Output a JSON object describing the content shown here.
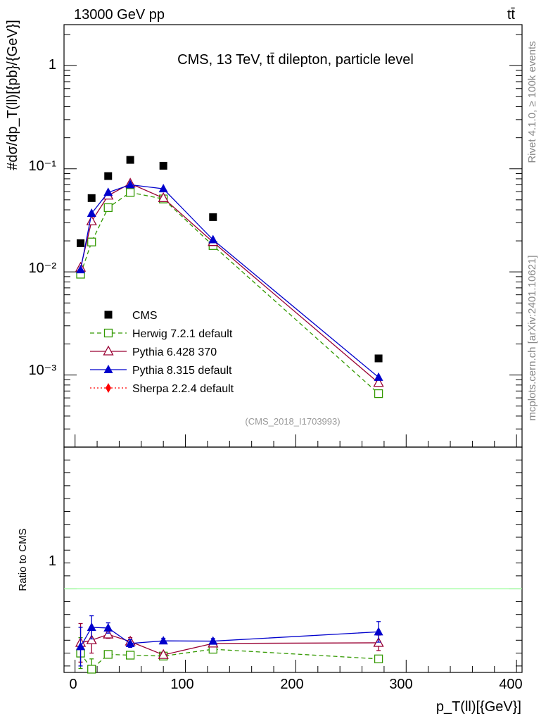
{
  "header": {
    "beam_label": "13000 GeV pp",
    "process_label": "tt̄",
    "plot_title": "CMS, 13 TeV, tt̄ dilepton, particle level",
    "analysis_id": "(CMS_2018_I1703993)"
  },
  "side_labels": {
    "rivet": "Rivet 4.1.0, ≥ 100k events",
    "mcplots": "mcplots.cern.ch [arXiv:2401.10621]"
  },
  "axes": {
    "ylabel_main": "#dσ/dp_T(ll)[{pb}/{GeV}]",
    "ylabel_ratio": "Ratio to CMS",
    "xlabel": "p_T(ll)[{GeV}]",
    "x_ticks": [
      "0",
      "100",
      "200",
      "300",
      "400"
    ],
    "y_ticks_main": [
      "10⁻³",
      "10⁻²",
      "10⁻¹",
      "1"
    ],
    "y_ticks_ratio": [
      "1"
    ]
  },
  "chart_data": {
    "type": "scatter",
    "title": "CMS, 13 TeV, tt̄ dilepton, particle level",
    "xlabel": "p_T(ll) [GeV]",
    "ylabel": "dσ/dp_T(ll) [pb/GeV]",
    "xlim": [
      -10,
      405
    ],
    "ylim": [
      0.0002,
      2.5
    ],
    "yscale": "log",
    "ratio_ylim": [
      0.35,
      2.1
    ],
    "x": [
      5,
      15,
      30,
      50,
      80,
      125,
      275
    ],
    "series": [
      {
        "name": "CMS",
        "color": "#000000",
        "marker": "square-filled",
        "values": [
          0.019,
          0.052,
          0.085,
          0.122,
          0.107,
          0.034,
          0.00145
        ]
      },
      {
        "name": "Herwig 7.2.1 default",
        "color": "#339900",
        "marker": "square-open",
        "dashed": true,
        "values": [
          0.0095,
          0.0195,
          0.042,
          0.059,
          0.051,
          0.018,
          0.00066
        ],
        "ratio": [
          0.5,
          0.375,
          0.49,
          0.484,
          0.477,
          0.53,
          0.455
        ],
        "ratio_err": [
          0.12,
          0.08,
          0.02,
          0.02,
          0.02,
          0.025,
          0.02
        ]
      },
      {
        "name": "Pythia 6.428 370",
        "color": "#990033",
        "marker": "triangle-open",
        "dashed": false,
        "values": [
          0.011,
          0.031,
          0.055,
          0.072,
          0.052,
          0.0195,
          0.00084
        ],
        "ratio": [
          0.58,
          0.6,
          0.645,
          0.59,
          0.486,
          0.575,
          0.58
        ],
        "ratio_err": [
          0.15,
          0.1,
          0.03,
          0.03,
          0.02,
          0.02,
          0.06
        ]
      },
      {
        "name": "Pythia 8.315 default",
        "color": "#0000cc",
        "marker": "triangle-filled",
        "dashed": false,
        "values": [
          0.0105,
          0.037,
          0.059,
          0.07,
          0.064,
          0.0205,
          0.00095
        ],
        "ratio": [
          0.55,
          0.7,
          0.695,
          0.575,
          0.595,
          0.593,
          0.665
        ],
        "ratio_err": [
          0.15,
          0.09,
          0.04,
          0.03,
          0.02,
          0.02,
          0.08
        ]
      },
      {
        "name": "Sherpa 2.2.4 default",
        "color": "#ff0000",
        "marker": "diamond-filled",
        "dotted": true,
        "values": [],
        "ratio": []
      }
    ],
    "reference_line": {
      "value": 1,
      "color": "#99ff99"
    }
  }
}
